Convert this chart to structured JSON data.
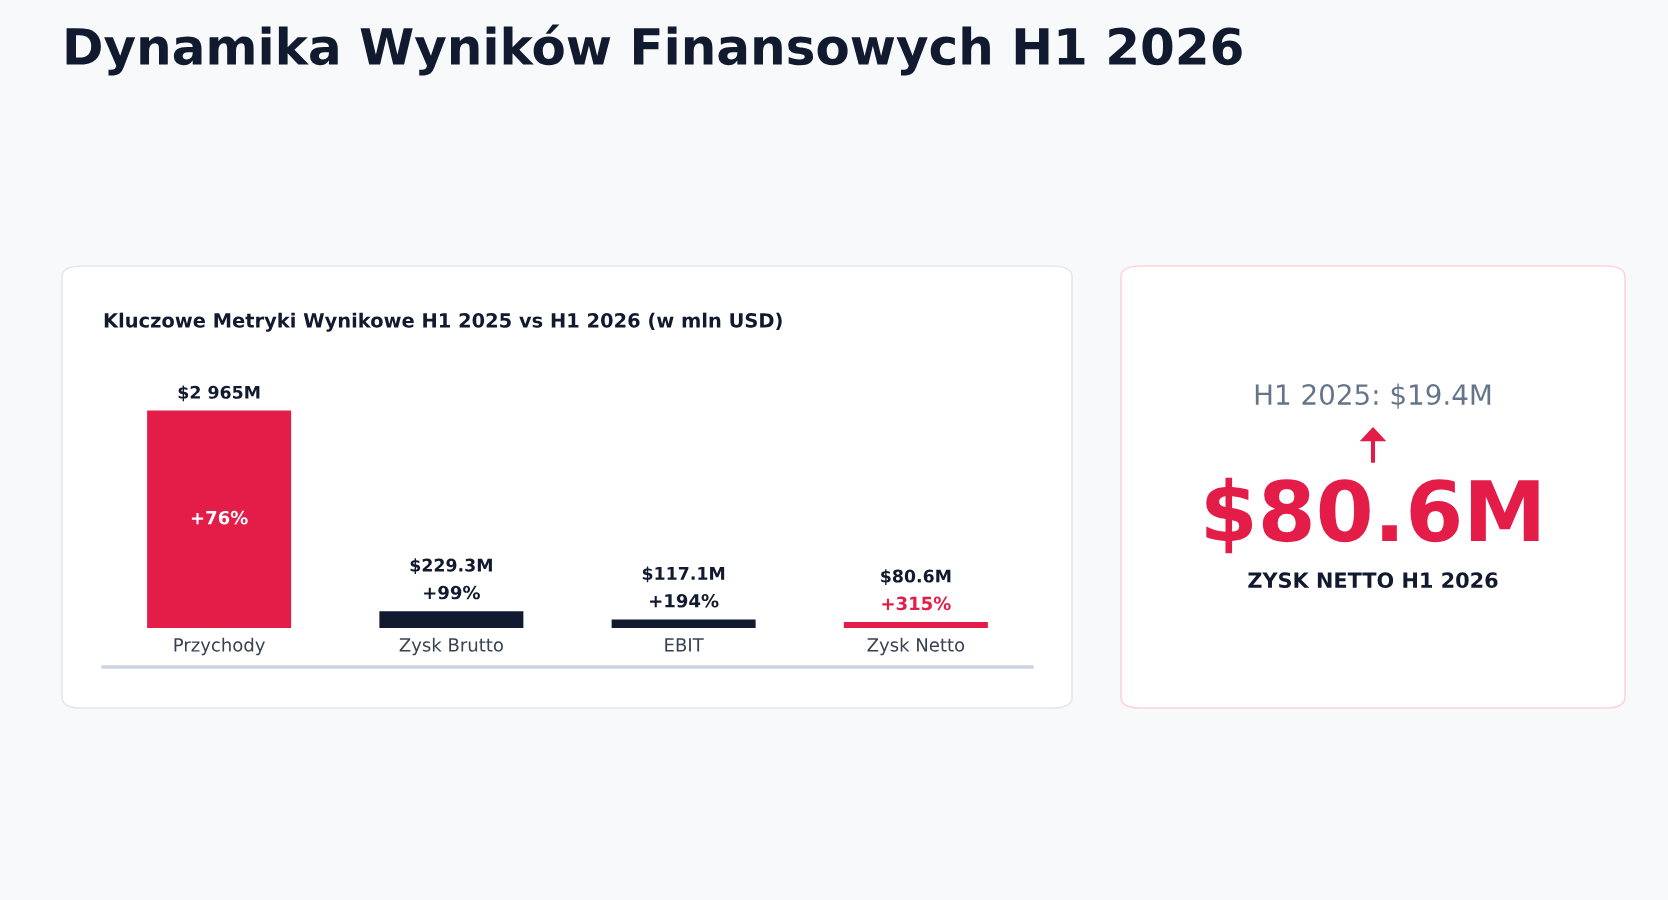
{
  "chart_data": [
    {
      "type": "bar",
      "title": "Dynamika Wyników Finansowych H1 2026",
      "subtitle": "Kluczowe Metryki Wynikowe H1 2025 vs H1 2026 (w mln USD)",
      "ylim": [
        0,
        3000
      ],
      "tick_labels": "x",
      "data_labels": true,
      "categories": [
        "Przychody",
        "Zysk Brutto",
        "EBIT",
        "Zysk Netto"
      ],
      "values": [
        2965,
        229.3,
        117.1,
        80.6
      ],
      "colors": [
        "#e31c48",
        "#111a2e",
        "#111a2e",
        "#e31c48"
      ],
      "value_labels": [
        "$2 965M",
        "$229.3M",
        "$117.1M",
        "$80.6M"
      ],
      "annotations": [
        "+76%",
        "+99%",
        "+194%",
        "+315%"
      ]
    },
    {
      "type": "other",
      "annotations": [
        "H1 2025: $19.4M",
        "$80.6M",
        "ZYSK NETTO H1 2026"
      ]
    }
  ]
}
